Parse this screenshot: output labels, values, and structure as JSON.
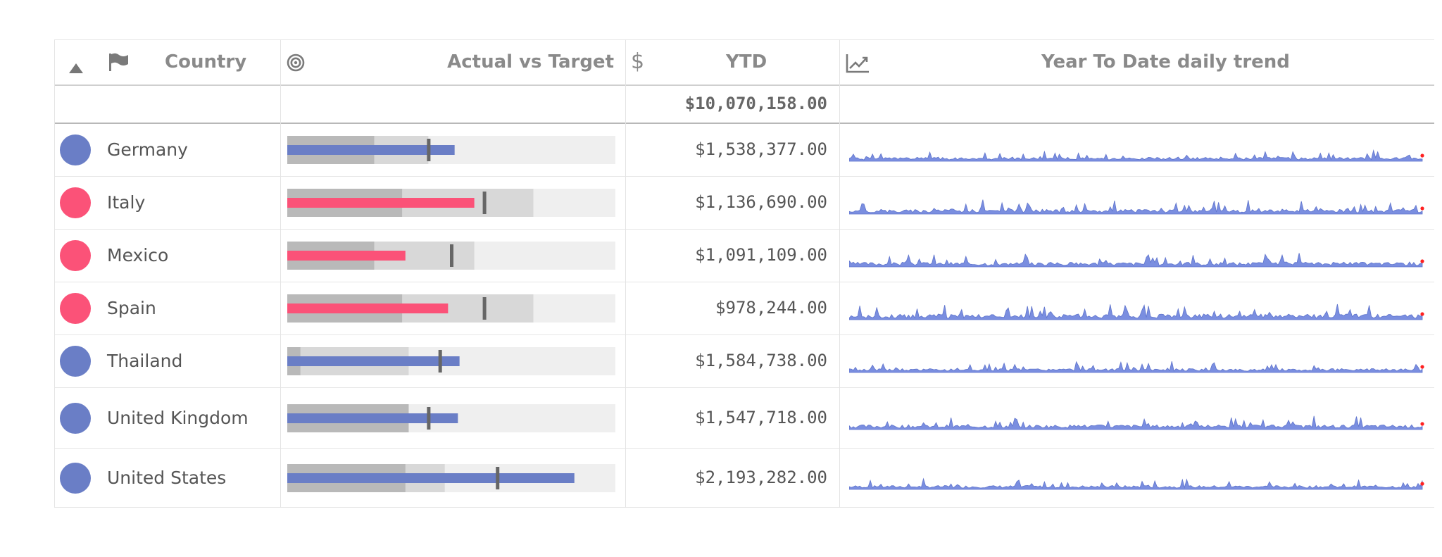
{
  "header": {
    "sort_indicator": "sort-ascending-icon",
    "country_label": "Country",
    "bullet_label": "Actual vs Target",
    "ytd_label": "YTD",
    "trend_label": "Year To Date daily trend"
  },
  "totals": {
    "ytd": "$10,070,158.00"
  },
  "colors": {
    "blue": "#6a7ec6",
    "red": "#fb5278",
    "band_light": "#efefef",
    "band_mid": "#d8d8d8",
    "band_dark": "#b9b9b9",
    "target_marker": "#666666",
    "spark_fill": "#7a8ee0",
    "spark_last_point": "#ff2020",
    "header_text": "#8a8a8a"
  },
  "rows": [
    {
      "country": "Germany",
      "ytd": "$1,538,377.00",
      "status": "blue",
      "bullet": {
        "actual": 0.51,
        "target": 0.43,
        "band_dark": 0.265,
        "band_mid": 0.43
      },
      "trend_profile": "low-variance"
    },
    {
      "country": "Italy",
      "ytd": "$1,136,690.00",
      "status": "red",
      "bullet": {
        "actual": 0.57,
        "target": 0.6,
        "band_dark": 0.35,
        "band_mid": 0.75
      },
      "trend_profile": "medium-variance"
    },
    {
      "country": "Mexico",
      "ytd": "$1,091,109.00",
      "status": "red",
      "bullet": {
        "actual": 0.36,
        "target": 0.5,
        "band_dark": 0.265,
        "band_mid": 0.57
      },
      "trend_profile": "medium-variance"
    },
    {
      "country": "Spain",
      "ytd": "$978,244.00",
      "status": "red",
      "bullet": {
        "actual": 0.49,
        "target": 0.6,
        "band_dark": 0.35,
        "band_mid": 0.75
      },
      "trend_profile": "high-variance"
    },
    {
      "country": "Thailand",
      "ytd": "$1,584,738.00",
      "status": "blue",
      "bullet": {
        "actual": 0.525,
        "target": 0.465,
        "band_dark": 0.04,
        "band_mid": 0.37
      },
      "trend_profile": "low-variance"
    },
    {
      "country": "United Kingdom",
      "ytd": "$1,547,718.00",
      "status": "blue",
      "bullet": {
        "actual": 0.52,
        "target": 0.43,
        "band_dark": 0.37,
        "band_mid": 0.37
      },
      "trend_profile": "medium-variance"
    },
    {
      "country": "United States",
      "ytd": "$2,193,282.00",
      "status": "blue",
      "bullet": {
        "actual": 0.875,
        "target": 0.64,
        "band_dark": 0.36,
        "band_mid": 0.48
      },
      "trend_profile": "low-variance"
    }
  ]
}
